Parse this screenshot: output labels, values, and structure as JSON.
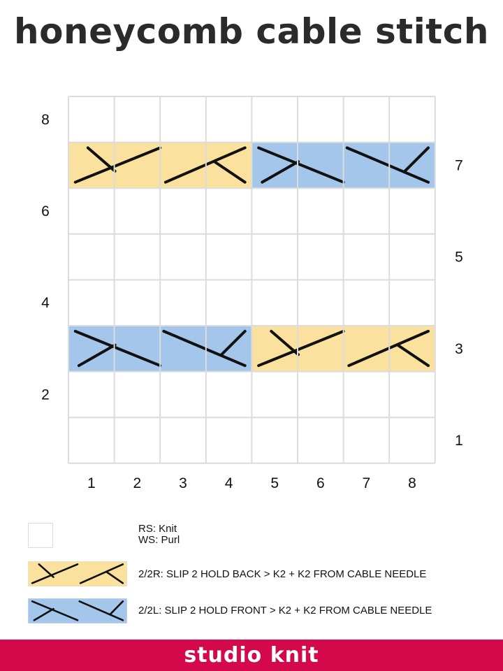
{
  "title": "honeycomb cable stitch",
  "colors": {
    "yellow": "#fae29e",
    "blue": "#a3c6ea",
    "grid": "#dcdcdc",
    "ink": "#111111",
    "footer": "#d3094c"
  },
  "chart": {
    "columns": 8,
    "rows": 8,
    "col_labels": [
      "1",
      "2",
      "3",
      "4",
      "5",
      "6",
      "7",
      "8"
    ],
    "left_row_labels": [
      {
        "row": 8,
        "label": "8"
      },
      {
        "row": 6,
        "label": "6"
      },
      {
        "row": 4,
        "label": "4"
      },
      {
        "row": 2,
        "label": "2"
      }
    ],
    "right_row_labels": [
      {
        "row": 7,
        "label": "7"
      },
      {
        "row": 5,
        "label": "5"
      },
      {
        "row": 3,
        "label": "3"
      },
      {
        "row": 1,
        "label": "1"
      }
    ],
    "cables": [
      {
        "row": 7,
        "start_col": 1,
        "span": 4,
        "type": "2/2R"
      },
      {
        "row": 7,
        "start_col": 5,
        "span": 4,
        "type": "2/2L"
      },
      {
        "row": 3,
        "start_col": 1,
        "span": 4,
        "type": "2/2L"
      },
      {
        "row": 3,
        "start_col": 5,
        "span": 4,
        "type": "2/2R"
      }
    ]
  },
  "legend": {
    "knit": {
      "line1": "RS: Knit",
      "line2": "WS: Purl"
    },
    "right_cross": {
      "symbol": "2/2R",
      "text": "2/2R: SLIP 2 HOLD BACK > K2 + K2 FROM CABLE NEEDLE"
    },
    "left_cross": {
      "symbol": "2/2L",
      "text": "2/2L: SLIP 2 HOLD FRONT > K2 + K2 FROM CABLE NEEDLE"
    }
  },
  "footer": {
    "brand": "studio knit"
  }
}
